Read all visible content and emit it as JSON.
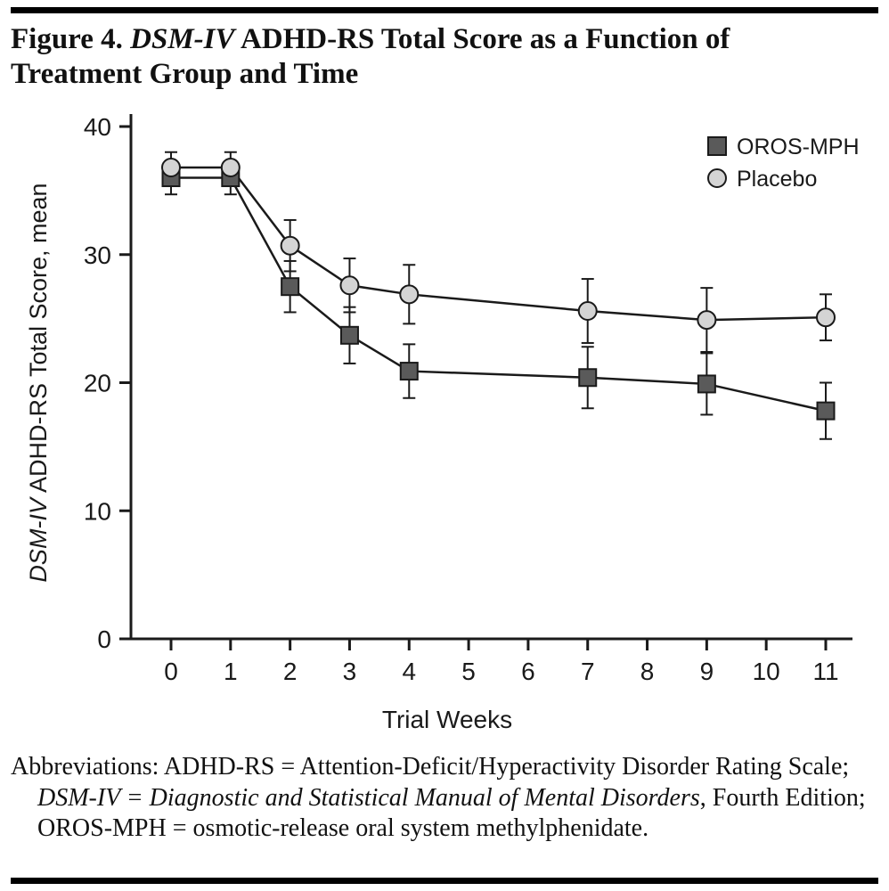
{
  "figure": {
    "title_prefix": "Figure 4. ",
    "title_italic": "DSM-IV",
    "title_rest": " ADHD-RS Total Score as a Function of Treatment Group and Time"
  },
  "abbreviations": {
    "segments": [
      {
        "text": "Abbreviations: ADHD-RS = Attention-Deficit/Hyperactivity Disorder Rating Scale; ",
        "italic": false
      },
      {
        "text": "DSM-IV = Diagnostic and Statistical Manual of Mental Disorders",
        "italic": true
      },
      {
        "text": ", Fourth Edition; OROS-MPH = osmotic-release oral system methylphenidate.",
        "italic": false
      }
    ]
  },
  "chart_data": {
    "type": "line",
    "title": "Figure 4. DSM-IV ADHD-RS Total Score as a Function of Treatment Group and Time",
    "xlabel": "Trial Weeks",
    "ylabel": "DSM-IV ADHD-RS Total Score, mean",
    "ylabel_italic": "DSM-IV",
    "ylabel_rest": " ADHD-RS Total Score, mean",
    "x": [
      0,
      1,
      2,
      3,
      4,
      7,
      9,
      11
    ],
    "xticks": [
      0,
      1,
      2,
      3,
      4,
      5,
      6,
      7,
      8,
      9,
      10,
      11
    ],
    "yticks": [
      0,
      10,
      20,
      30,
      40
    ],
    "ylim": [
      0,
      40
    ],
    "grid": false,
    "legend_position": "top-right",
    "error_bars": true,
    "ink_color": "#1a1a1a",
    "series": [
      {
        "name": "OROS-MPH",
        "marker": "square",
        "fill": "#5a5a5a",
        "values": [
          36.0,
          36.0,
          27.5,
          23.7,
          20.9,
          20.4,
          19.9,
          17.8
        ],
        "errors": [
          1.3,
          1.3,
          2.0,
          2.2,
          2.1,
          2.4,
          2.4,
          2.2
        ]
      },
      {
        "name": "Placebo",
        "marker": "circle",
        "fill": "#d4d4d4",
        "values": [
          36.8,
          36.8,
          30.7,
          27.6,
          26.9,
          25.6,
          24.9,
          25.1
        ],
        "errors": [
          1.2,
          1.2,
          2.0,
          2.1,
          2.3,
          2.5,
          2.5,
          1.8
        ]
      }
    ]
  }
}
